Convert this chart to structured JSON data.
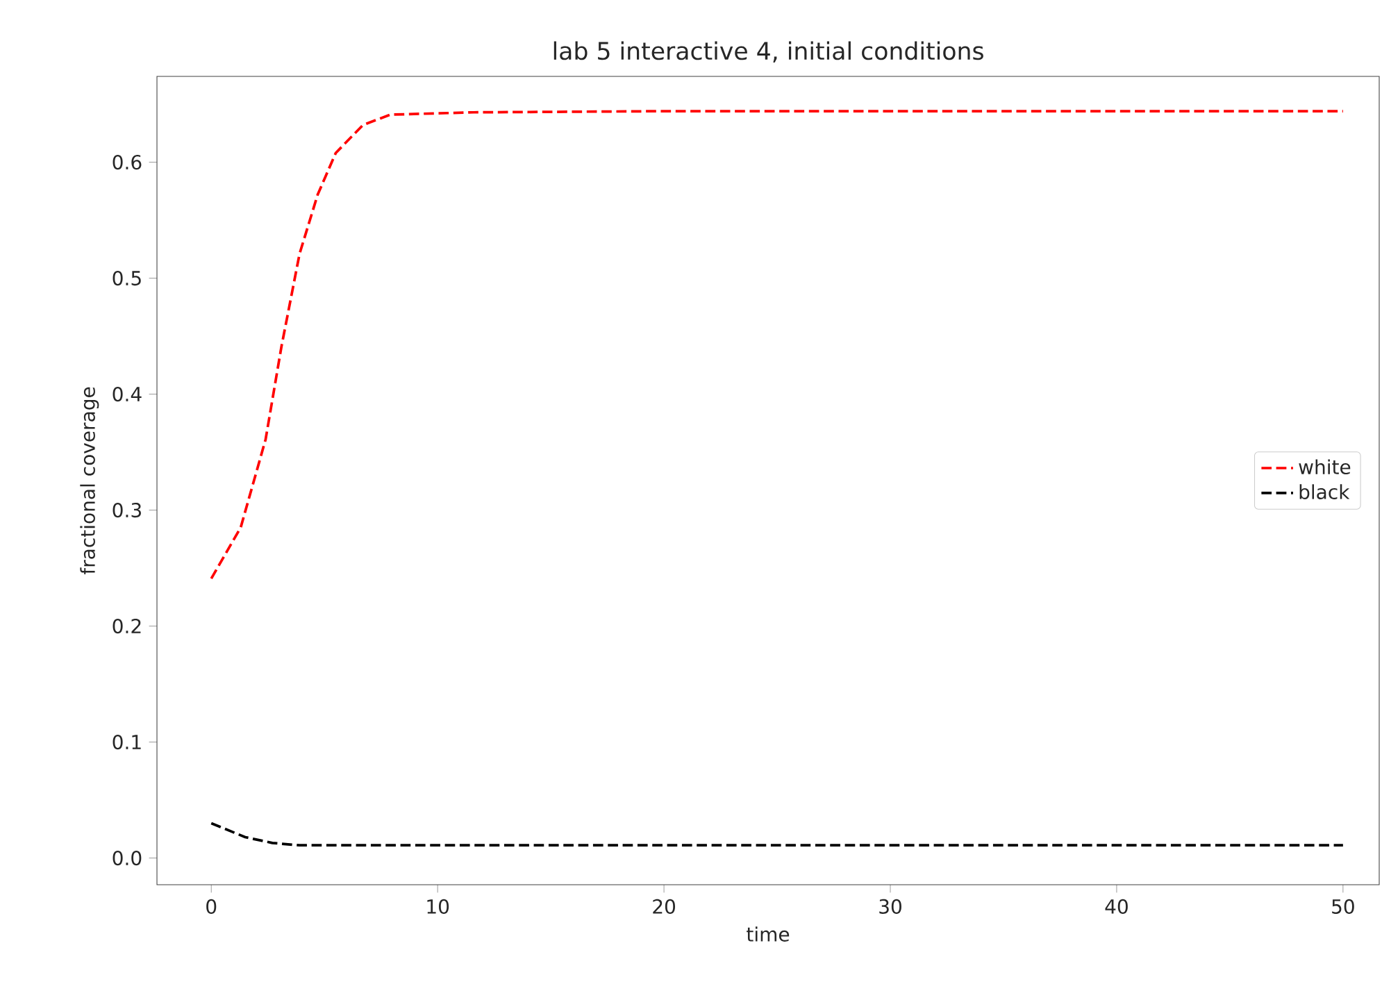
{
  "chart_data": {
    "type": "line",
    "title": "lab 5 interactive 4, initial conditions",
    "xlabel": "time",
    "ylabel": "fractional coverage",
    "xlim": [
      -2.4,
      51.6
    ],
    "ylim": [
      -0.023,
      0.674
    ],
    "xticks": [
      0,
      10,
      20,
      30,
      40,
      50
    ],
    "yticks": [
      {
        "value": 0.0,
        "label": "0.0"
      },
      0.1,
      0.2,
      0.3,
      0.4,
      0.5,
      0.6
    ],
    "legend": "right",
    "line_style": "dashed",
    "grid": false,
    "series": [
      {
        "name": "white",
        "color": "#ff0000",
        "x": [
          0,
          1.3,
          2.4,
          3.1,
          3.9,
          4.7,
          5.5,
          6.7,
          7.9,
          11.6,
          20,
          30,
          40,
          50
        ],
        "values": [
          0.241,
          0.285,
          0.361,
          0.441,
          0.521,
          0.572,
          0.608,
          0.632,
          0.641,
          0.643,
          0.644,
          0.644,
          0.644,
          0.644
        ]
      },
      {
        "name": "black",
        "color": "#000000",
        "x": [
          0,
          1.5,
          2.7,
          3.9,
          10,
          20,
          30,
          40,
          50
        ],
        "values": [
          0.03,
          0.018,
          0.013,
          0.011,
          0.011,
          0.011,
          0.011,
          0.011,
          0.011
        ]
      }
    ]
  }
}
